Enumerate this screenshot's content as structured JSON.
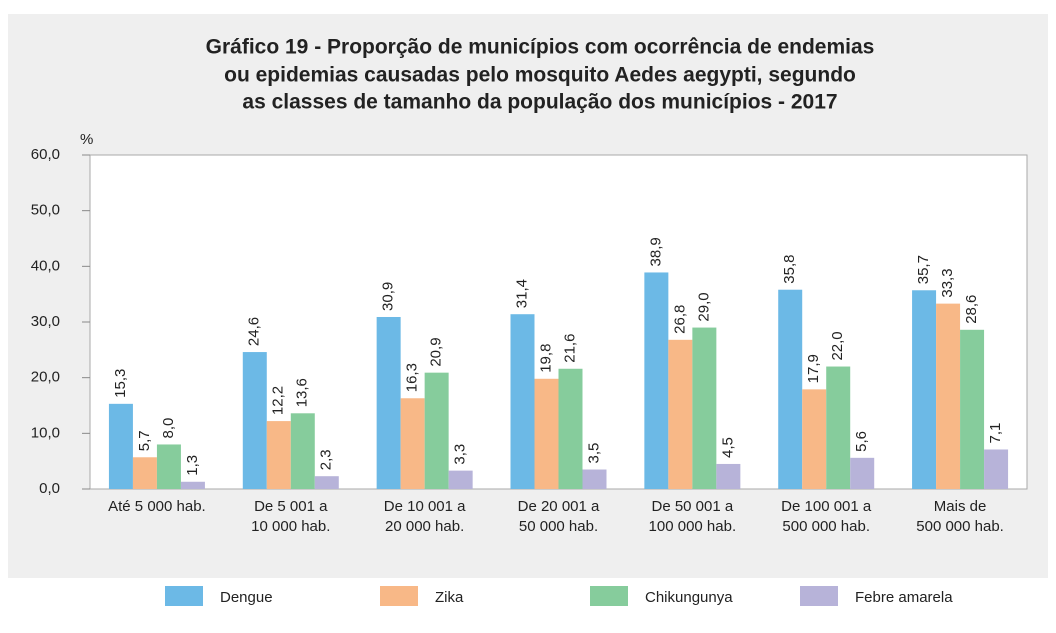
{
  "chart_data": {
    "type": "bar",
    "title": [
      "Gráfico 19 - Proporção de municípios com ocorrência de endemias",
      "ou epidemias causadas pelo mosquito Aedes aegypti, segundo",
      "as classes de tamanho da população dos municípios - 2017"
    ],
    "ylabel": "%",
    "categories": [
      [
        "Até 5 000 hab."
      ],
      [
        "De 5 001 a",
        "10 000 hab."
      ],
      [
        "De 10 001 a",
        "20 000 hab."
      ],
      [
        "De 20 001 a",
        "50 000 hab."
      ],
      [
        "De 50 001 a",
        "100 000 hab."
      ],
      [
        "De 100 001 a",
        "500 000 hab."
      ],
      [
        "Mais de",
        "500 000 hab."
      ]
    ],
    "series": [
      {
        "name": "Dengue",
        "color": "#6cb9e6",
        "values": [
          15.3,
          24.6,
          30.9,
          31.4,
          38.9,
          35.8,
          35.7
        ],
        "value_labels": [
          "15,3",
          "24,6",
          "30,9",
          "31,4",
          "38,9",
          "35,8",
          "35,7"
        ]
      },
      {
        "name": "Zika",
        "color": "#f8b887",
        "values": [
          5.7,
          12.2,
          16.3,
          19.8,
          26.8,
          17.9,
          33.3
        ],
        "value_labels": [
          "5,7",
          "12,2",
          "16,3",
          "19,8",
          "26,8",
          "17,9",
          "33,3"
        ]
      },
      {
        "name": "Chikungunya",
        "color": "#86cc9c",
        "values": [
          8.0,
          13.6,
          20.9,
          21.6,
          29.0,
          22.0,
          28.6
        ],
        "value_labels": [
          "8,0",
          "13,6",
          "20,9",
          "21,6",
          "29,0",
          "22,0",
          "28,6"
        ]
      },
      {
        "name": "Febre amarela",
        "color": "#b7b3d9",
        "values": [
          1.3,
          2.3,
          3.3,
          3.5,
          4.5,
          5.6,
          7.1
        ],
        "value_labels": [
          "1,3",
          "2,3",
          "3,3",
          "3,5",
          "4,5",
          "5,6",
          "7,1"
        ]
      }
    ],
    "ylim": [
      0,
      60
    ],
    "yticks": [
      {
        "value": 0,
        "label": "0,0"
      },
      {
        "value": 10,
        "label": "10,0"
      },
      {
        "value": 20,
        "label": "20,0"
      },
      {
        "value": 30,
        "label": "30,0"
      },
      {
        "value": 40,
        "label": "40,0"
      },
      {
        "value": 50,
        "label": "50,0"
      },
      {
        "value": 60,
        "label": "60,0"
      }
    ],
    "grid": false
  }
}
